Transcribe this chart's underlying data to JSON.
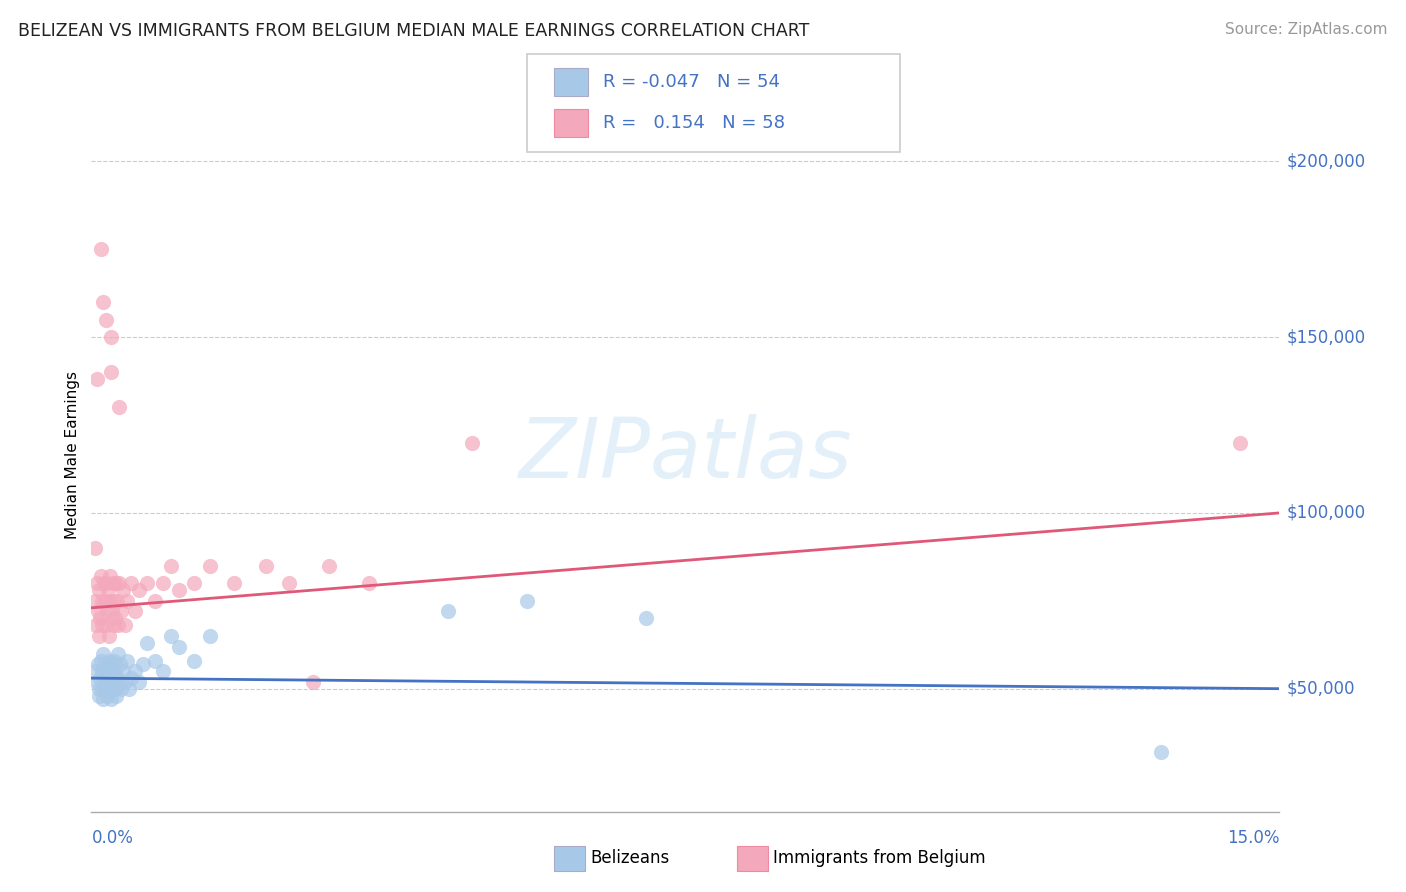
{
  "title": "BELIZEAN VS IMMIGRANTS FROM BELGIUM MEDIAN MALE EARNINGS CORRELATION CHART",
  "source": "Source: ZipAtlas.com",
  "ylabel": "Median Male Earnings",
  "yticks": [
    50000,
    100000,
    150000,
    200000
  ],
  "ytick_labels": [
    "$50,000",
    "$100,000",
    "$150,000",
    "$200,000"
  ],
  "xmin": 0.0,
  "xmax": 15.0,
  "ymin": 15000,
  "ymax": 218000,
  "belizean_color": "#a8c8e8",
  "belgium_color": "#f4a8bc",
  "belizean_line_color": "#4472c4",
  "belgium_line_color": "#e05878",
  "legend_r1_text": "R = -0.047   N = 54",
  "legend_r2_text": "R =   0.154   N = 58",
  "watermark_text": "ZIPatlas",
  "bottom_label1": "Belizeans",
  "bottom_label2": "Immigrants from Belgium",
  "title_color": "#222222",
  "source_color": "#999999",
  "axis_label_color": "#555555",
  "ytick_color": "#4472c4",
  "xtick_color": "#4472c4",
  "grid_color": "#cccccc",
  "belizean_x": [
    0.05,
    0.07,
    0.08,
    0.09,
    0.1,
    0.11,
    0.12,
    0.13,
    0.14,
    0.15,
    0.15,
    0.16,
    0.17,
    0.18,
    0.19,
    0.2,
    0.2,
    0.21,
    0.22,
    0.23,
    0.24,
    0.25,
    0.25,
    0.26,
    0.27,
    0.28,
    0.29,
    0.3,
    0.3,
    0.31,
    0.32,
    0.33,
    0.35,
    0.36,
    0.38,
    0.4,
    0.42,
    0.45,
    0.48,
    0.5,
    0.55,
    0.6,
    0.65,
    0.7,
    0.8,
    0.9,
    1.0,
    1.1,
    1.3,
    1.5,
    4.5,
    5.5,
    7.0,
    13.5
  ],
  "belizean_y": [
    55000,
    52000,
    57000,
    50000,
    48000,
    53000,
    58000,
    50000,
    55000,
    60000,
    47000,
    52000,
    57000,
    50000,
    54000,
    48000,
    55000,
    52000,
    58000,
    50000,
    55000,
    47000,
    52000,
    57000,
    50000,
    53000,
    58000,
    50000,
    55000,
    48000,
    53000,
    60000,
    52000,
    57000,
    50000,
    55000,
    52000,
    58000,
    50000,
    53000,
    55000,
    52000,
    57000,
    63000,
    58000,
    55000,
    65000,
    62000,
    58000,
    65000,
    72000,
    75000,
    70000,
    32000
  ],
  "belgium_x": [
    0.05,
    0.06,
    0.07,
    0.08,
    0.09,
    0.1,
    0.11,
    0.12,
    0.13,
    0.14,
    0.15,
    0.16,
    0.17,
    0.18,
    0.19,
    0.2,
    0.21,
    0.22,
    0.23,
    0.24,
    0.25,
    0.26,
    0.27,
    0.28,
    0.29,
    0.3,
    0.31,
    0.32,
    0.33,
    0.35,
    0.38,
    0.4,
    0.42,
    0.45,
    0.5,
    0.55,
    0.6,
    0.7,
    0.8,
    0.9,
    1.0,
    1.1,
    1.3,
    1.5,
    1.8,
    2.2,
    2.5,
    3.0,
    3.5,
    0.07,
    0.12,
    0.18,
    0.25,
    0.35,
    2.8,
    4.8,
    14.5,
    0.05
  ],
  "belgium_y": [
    75000,
    68000,
    80000,
    72000,
    65000,
    78000,
    70000,
    82000,
    75000,
    68000,
    160000,
    80000,
    75000,
    68000,
    80000,
    72000,
    78000,
    65000,
    75000,
    82000,
    150000,
    72000,
    80000,
    68000,
    75000,
    70000,
    80000,
    75000,
    68000,
    80000,
    72000,
    78000,
    68000,
    75000,
    80000,
    72000,
    78000,
    80000,
    75000,
    80000,
    85000,
    78000,
    80000,
    85000,
    80000,
    85000,
    80000,
    85000,
    80000,
    138000,
    175000,
    155000,
    140000,
    130000,
    52000,
    120000,
    120000,
    90000
  ]
}
